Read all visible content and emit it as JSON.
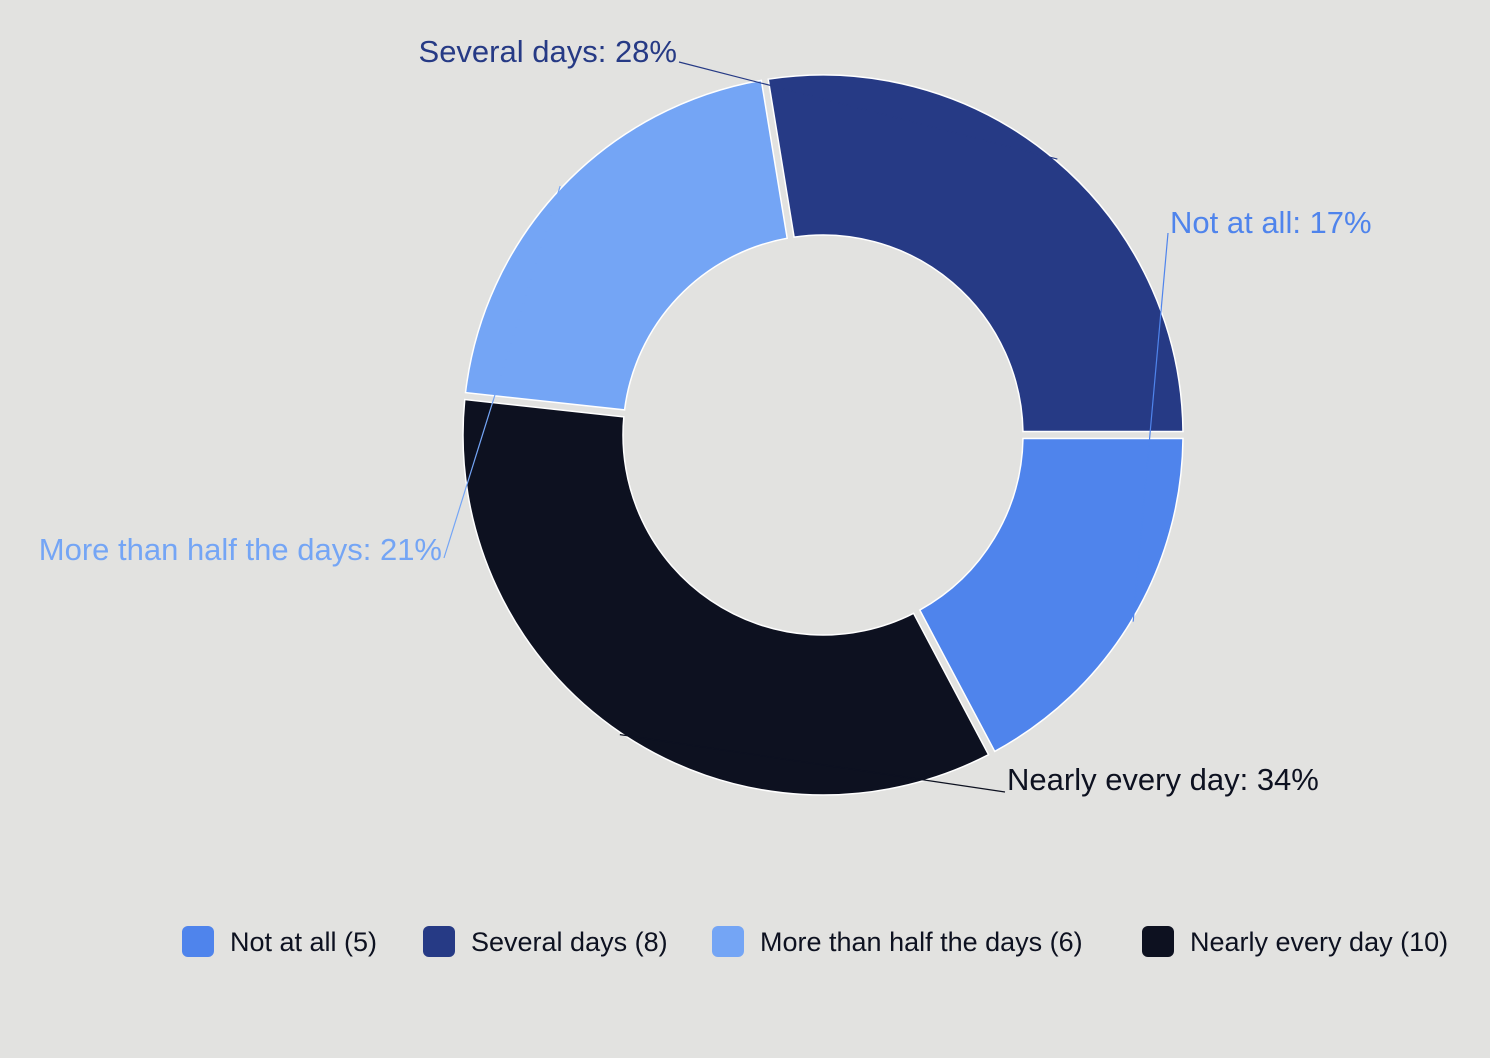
{
  "chart_data": {
    "type": "pie",
    "variant": "donut",
    "total": 29,
    "slices": [
      {
        "name": "Not at all",
        "count": 5,
        "percent": 17,
        "color": "#4f84ec",
        "label_text": "Not at all: 17%",
        "legend_text": "Not at all (5)"
      },
      {
        "name": "Nearly every day",
        "count": 10,
        "percent": 34,
        "color": "#0d1120",
        "label_text": "Nearly every day: 34%",
        "legend_text": "Nearly every day (10)"
      },
      {
        "name": "More than half the days",
        "count": 6,
        "percent": 21,
        "color": "#74a5f5",
        "label_text": "More than half the days: 21%",
        "legend_text": "More than half the days (6)"
      },
      {
        "name": "Several days",
        "count": 8,
        "percent": 28,
        "color": "#263a85",
        "label_text": "Several days: 28%",
        "legend_text": "Several days (8)"
      }
    ],
    "legend_order": [
      "Not at all",
      "Several days",
      "More than half the days",
      "Nearly every day"
    ],
    "legend_position": "bottom",
    "start_angle_deg": 90,
    "direction": "clockwise"
  },
  "colors": {
    "background": "#e2e2e0",
    "label_dark": "#0d1120",
    "legend_text": "#0d1120"
  }
}
